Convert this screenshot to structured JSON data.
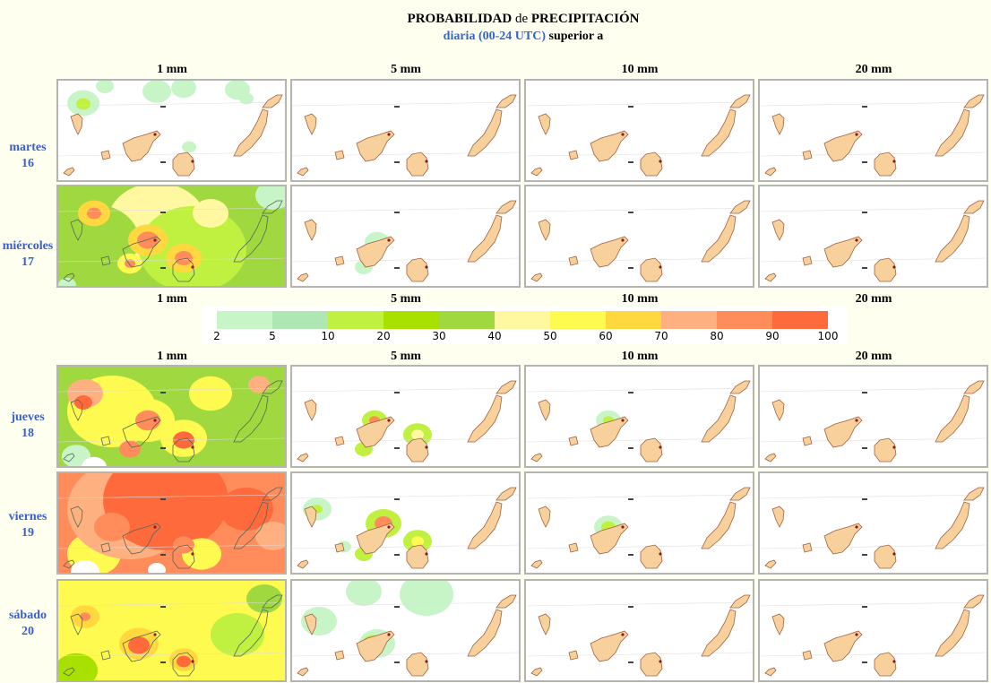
{
  "title": {
    "main": "PROBABILIDAD",
    "connector": "de",
    "main2": "PRECIPITACIÓN",
    "sub_blue": "diaria (00-24 UTC)",
    "sub_black": "superior a"
  },
  "thresholds": [
    "1 mm",
    "5 mm",
    "10 mm",
    "20 mm"
  ],
  "days": [
    {
      "name": "martes",
      "num": "16"
    },
    {
      "name": "miércoles",
      "num": "17"
    },
    {
      "name": "jueves",
      "num": "18"
    },
    {
      "name": "viernes",
      "num": "19"
    },
    {
      "name": "sábado",
      "num": "20"
    }
  ],
  "legend": {
    "ticks": [
      "2",
      "5",
      "10",
      "20",
      "30",
      "40",
      "50",
      "60",
      "70",
      "80",
      "90",
      "100"
    ],
    "colors": [
      "#c8f5c8",
      "#aee6b4",
      "#c0f040",
      "#a8e000",
      "#a0d840",
      "#fff8a0",
      "#fffa50",
      "#ffd840",
      "#ffb080",
      "#ff8c5a",
      "#ff6a3c"
    ]
  },
  "colors": {
    "island": "#f8d09c",
    "island_stroke": "#a06040",
    "day_label": "#3a5fcd",
    "panel_border": "#b4b4b4"
  }
}
